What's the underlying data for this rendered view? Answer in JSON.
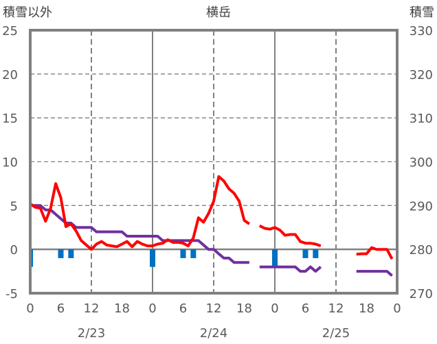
{
  "chart_data": {
    "type": "line",
    "title": "横岳",
    "left_axis_label": "積雪以外",
    "right_axis_label": "積雪",
    "left_ylim": [
      -5,
      25
    ],
    "left_yticks": [
      "-5",
      "0",
      "5",
      "10",
      "15",
      "20",
      "25"
    ],
    "right_ylim": [
      270,
      330
    ],
    "right_yticks": [
      "270",
      "280",
      "290",
      "300",
      "310",
      "320",
      "330"
    ],
    "x_hours_range": [
      0,
      72
    ],
    "x_tick_labels": [
      "0",
      "6",
      "12",
      "18",
      "0",
      "6",
      "12",
      "18",
      "0",
      "6",
      "12",
      "18",
      "0"
    ],
    "date_labels": [
      "2/23",
      "2/24",
      "2/25"
    ],
    "grid": true,
    "colors": {
      "red": "#FF0000",
      "purple": "#7030A0",
      "blue": "#0070C0",
      "grid": "#808080"
    },
    "series": [
      {
        "name": "red-line",
        "axis": "left",
        "color": "#FF0000",
        "values": [
          5.2,
          4.8,
          4.7,
          3.2,
          4.7,
          7.5,
          5.9,
          2.6,
          2.9,
          2.1,
          1.0,
          0.5,
          0.0,
          0.6,
          0.9,
          0.5,
          0.4,
          0.3,
          0.6,
          0.9,
          0.3,
          0.9,
          0.6,
          0.4,
          0.4,
          0.6,
          0.7,
          1.1,
          0.8,
          0.8,
          0.7,
          0.4,
          1.3,
          3.6,
          3.1,
          4.1,
          5.5,
          8.3,
          7.8,
          6.9,
          6.4,
          5.5,
          3.3,
          2.9,
          null,
          2.7,
          2.4,
          2.3,
          2.5,
          2.2,
          1.6,
          1.7,
          1.7,
          0.9,
          0.7,
          0.7,
          0.6,
          0.4,
          null,
          null,
          null,
          null,
          null,
          null,
          -0.55,
          -0.5,
          -0.5,
          0.2,
          0.0,
          0.0,
          0.0,
          -1.1
        ]
      },
      {
        "name": "purple-line-snow-depth",
        "axis": "right",
        "color": "#7030A0",
        "values": [
          290,
          290,
          290,
          289,
          289,
          288,
          287,
          286,
          286,
          285,
          285,
          285,
          285,
          284,
          284,
          284,
          284,
          284,
          284,
          283,
          283,
          283,
          283,
          283,
          283,
          283,
          282,
          282,
          282,
          282,
          282,
          282,
          282,
          282,
          281,
          280,
          280,
          279,
          278,
          278,
          277,
          277,
          277,
          277,
          null,
          276,
          276,
          276,
          276,
          276,
          276,
          276,
          276,
          275,
          275,
          276,
          275,
          276,
          null,
          null,
          null,
          null,
          null,
          null,
          275,
          275,
          275,
          275,
          275,
          275,
          275,
          274
        ]
      },
      {
        "name": "blue-bars",
        "axis": "left",
        "type": "bar",
        "color": "#0070C0",
        "points": [
          {
            "hour": 0,
            "value": -2
          },
          {
            "hour": 6,
            "value": -1
          },
          {
            "hour": 8,
            "value": -1
          },
          {
            "hour": 24,
            "value": -2
          },
          {
            "hour": 30,
            "value": -1
          },
          {
            "hour": 32,
            "value": -1
          },
          {
            "hour": 48,
            "value": -2
          },
          {
            "hour": 54,
            "value": -1
          },
          {
            "hour": 56,
            "value": -1
          }
        ]
      }
    ]
  }
}
